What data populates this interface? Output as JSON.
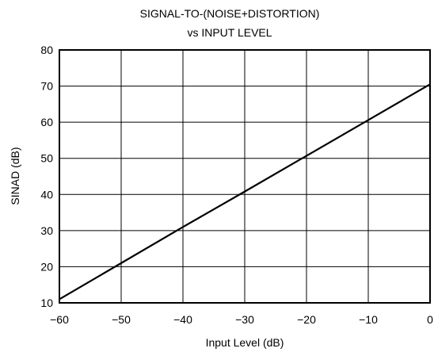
{
  "chart_data": {
    "type": "line",
    "title": "SIGNAL-TO-(NOISE+DISTORTION)",
    "subtitle": "vs INPUT LEVEL",
    "xlabel": "Input Level (dB)",
    "ylabel": "SINAD (dB)",
    "xlim": [
      -60,
      0
    ],
    "ylim": [
      10,
      80
    ],
    "grid": true,
    "x_ticks": [
      -60,
      -50,
      -40,
      -30,
      -20,
      -10,
      0
    ],
    "x_tick_labels": [
      "−60",
      "−50",
      "−40",
      "−30",
      "−20",
      "−10",
      "0"
    ],
    "y_ticks": [
      10,
      20,
      30,
      40,
      50,
      60,
      70,
      80
    ],
    "y_tick_labels": [
      "10",
      "20",
      "30",
      "40",
      "50",
      "60",
      "70",
      "80"
    ],
    "series": [
      {
        "x": [
          -60,
          -50,
          -40,
          -30,
          -20,
          -10,
          0
        ],
        "y": [
          11,
          21,
          31,
          40.8,
          50.7,
          60.6,
          70.5
        ]
      }
    ]
  }
}
